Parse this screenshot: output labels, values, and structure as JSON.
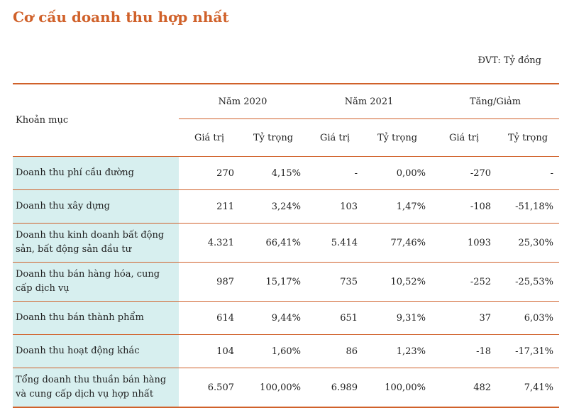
{
  "title": "Cơ cấu doanh thu hợp nhất",
  "unit": "ĐVT: Tỷ đồng",
  "table": {
    "col_item": "Khoản mục",
    "groups": [
      "Năm 2020",
      "Năm 2021",
      "Tăng/Giảm"
    ],
    "subheaders": [
      "Giá trị",
      "Tỷ trọng",
      "Giá trị",
      "Tỷ trọng",
      "Giá trị",
      "Tỷ trọng"
    ],
    "rows": [
      {
        "label": "Doanh thu phí cầu đường",
        "cells": [
          "270",
          "4,15%",
          "-",
          "0,00%",
          "-270",
          "-"
        ]
      },
      {
        "label": "Doanh thu xây dựng",
        "cells": [
          "211",
          "3,24%",
          "103",
          "1,47%",
          "-108",
          "-51,18%"
        ]
      },
      {
        "label": "Doanh thu kinh doanh bất động sản, bất động sản đầu tư",
        "cells": [
          "4.321",
          "66,41%",
          "5.414",
          "77,46%",
          "1093",
          "25,30%"
        ]
      },
      {
        "label": "Doanh thu bán hàng hóa, cung cấp dịch vụ",
        "cells": [
          "987",
          "15,17%",
          "735",
          "10,52%",
          "-252",
          "-25,53%"
        ]
      },
      {
        "label": "Doanh thu bán thành phẩm",
        "cells": [
          "614",
          "9,44%",
          "651",
          "9,31%",
          "37",
          "6,03%"
        ]
      },
      {
        "label": "Doanh thu hoạt động khác",
        "cells": [
          "104",
          "1,60%",
          "86",
          "1,23%",
          "-18",
          "-17,31%"
        ]
      },
      {
        "label": "Tổng doanh thu thuần bán hàng và cung cấp dịch vụ hợp nhất",
        "cells": [
          "6.507",
          "100,00%",
          "6.989",
          "100,00%",
          "482",
          "7,41%"
        ]
      }
    ]
  }
}
